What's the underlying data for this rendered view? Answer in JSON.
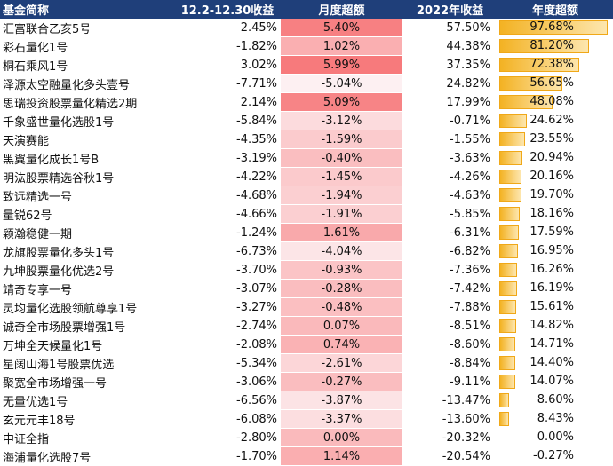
{
  "header": {
    "name": "基金简称",
    "period_return": "12.2-12.30收益",
    "monthly_excess": "月度超额",
    "return_2022": "2022年收益",
    "annual_excess": "年度超额"
  },
  "rows": [
    {
      "name": "汇富联合乙亥5号",
      "ret": "2.45%",
      "me": "5.40%",
      "y": "57.50%",
      "ae": "97.68%"
    },
    {
      "name": "彩石量化1号",
      "ret": "-1.82%",
      "me": "1.02%",
      "y": "44.38%",
      "ae": "81.20%"
    },
    {
      "name": "桐石乘风1号",
      "ret": "3.02%",
      "me": "5.99%",
      "y": "37.35%",
      "ae": "72.38%"
    },
    {
      "name": "泽源太空融量化多头壹号",
      "ret": "-7.71%",
      "me": "-5.04%",
      "y": "24.82%",
      "ae": "56.65%"
    },
    {
      "name": "思瑞投资股票量化精选2期",
      "ret": "2.14%",
      "me": "5.09%",
      "y": "17.99%",
      "ae": "48.08%"
    },
    {
      "name": "千象盛世量化选股1号",
      "ret": "-5.84%",
      "me": "-3.12%",
      "y": "-0.71%",
      "ae": "24.62%"
    },
    {
      "name": "天演赛能",
      "ret": "-4.35%",
      "me": "-1.59%",
      "y": "-1.55%",
      "ae": "23.55%"
    },
    {
      "name": "黑翼量化成长1号B",
      "ret": "-3.19%",
      "me": "-0.40%",
      "y": "-3.63%",
      "ae": "20.94%"
    },
    {
      "name": "明汯股票精选谷秋1号",
      "ret": "-4.22%",
      "me": "-1.45%",
      "y": "-4.26%",
      "ae": "20.16%"
    },
    {
      "name": "致远精选一号",
      "ret": "-4.68%",
      "me": "-1.94%",
      "y": "-4.63%",
      "ae": "19.70%"
    },
    {
      "name": "量锐62号",
      "ret": "-4.66%",
      "me": "-1.91%",
      "y": "-5.85%",
      "ae": "18.16%"
    },
    {
      "name": "颖瀚稳健一期",
      "ret": "-1.24%",
      "me": "1.61%",
      "y": "-6.31%",
      "ae": "17.59%"
    },
    {
      "name": "龙旗股票量化多头1号",
      "ret": "-6.73%",
      "me": "-4.04%",
      "y": "-6.82%",
      "ae": "16.95%"
    },
    {
      "name": "九坤股票量化优选2号",
      "ret": "-3.70%",
      "me": "-0.93%",
      "y": "-7.36%",
      "ae": "16.26%"
    },
    {
      "name": "靖奇专享一号",
      "ret": "-3.07%",
      "me": "-0.28%",
      "y": "-7.42%",
      "ae": "16.19%"
    },
    {
      "name": "灵均量化选股领航尊享1号",
      "ret": "-3.27%",
      "me": "-0.48%",
      "y": "-7.88%",
      "ae": "15.61%"
    },
    {
      "name": "诚奇全市场股票增强1号",
      "ret": "-2.74%",
      "me": "0.07%",
      "y": "-8.51%",
      "ae": "14.82%"
    },
    {
      "name": "万坤全天候量化1号",
      "ret": "-2.08%",
      "me": "0.74%",
      "y": "-8.60%",
      "ae": "14.71%"
    },
    {
      "name": "星阔山海1号股票优选",
      "ret": "-5.34%",
      "me": "-2.61%",
      "y": "-8.84%",
      "ae": "14.40%"
    },
    {
      "name": "聚宽全市场增强一号",
      "ret": "-3.06%",
      "me": "-0.27%",
      "y": "-9.11%",
      "ae": "14.07%"
    },
    {
      "name": "无量优选1号",
      "ret": "-6.56%",
      "me": "-3.87%",
      "y": "-13.47%",
      "ae": "8.60%"
    },
    {
      "name": "玄元元丰18号",
      "ret": "-6.08%",
      "me": "-3.37%",
      "y": "-13.60%",
      "ae": "8.43%"
    },
    {
      "name": "中证全指",
      "ret": "-2.80%",
      "me": "0.00%",
      "y": "-20.32%",
      "ae": "0.00%"
    },
    {
      "name": "海浦量化选股7号",
      "ret": "-1.70%",
      "me": "1.14%",
      "y": "-20.54%",
      "ae": "-0.27%"
    }
  ],
  "colors": {
    "header_bg": "#1f3f7a",
    "header_text": "#ffffff",
    "heat_low": "#fdf0f2",
    "heat_high": "#f77a7c",
    "bar_fill": "#f3b223"
  }
}
